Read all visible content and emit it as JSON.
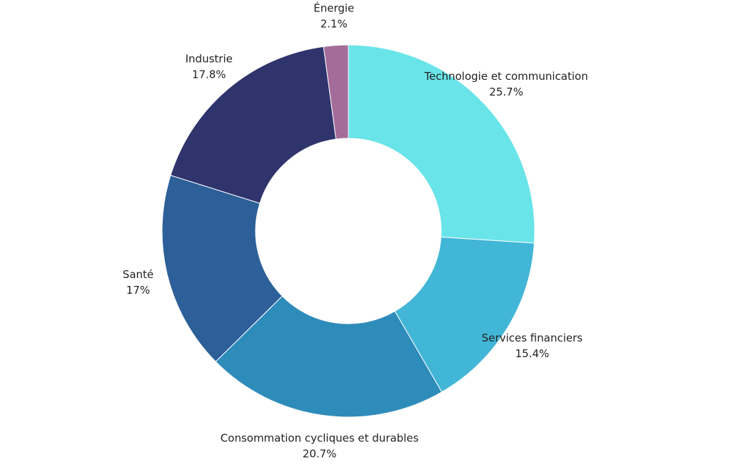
{
  "chart_data": {
    "type": "pie",
    "variant": "donut",
    "legend": "none",
    "start": "top",
    "direction": "clockwise",
    "slices": [
      {
        "label": "Technologie et communication",
        "value": 25.7,
        "value_label": "25.7%",
        "color": "#69E4E8"
      },
      {
        "label": "Services financiers",
        "value": 15.4,
        "value_label": "15.4%",
        "color": "#42B6D6"
      },
      {
        "label": "Consommation cycliques et durables",
        "value": 20.7,
        "value_label": "20.7%",
        "color": "#2E8CBA"
      },
      {
        "label": "Santé",
        "value": 17,
        "value_label": "17%",
        "color": "#2D5F98"
      },
      {
        "label": "Industrie",
        "value": 17.8,
        "value_label": "17.8%",
        "color": "#2F346D"
      },
      {
        "label": "Énergie",
        "value": 2.1,
        "value_label": "2.1%",
        "color": "#A46D99"
      }
    ]
  }
}
